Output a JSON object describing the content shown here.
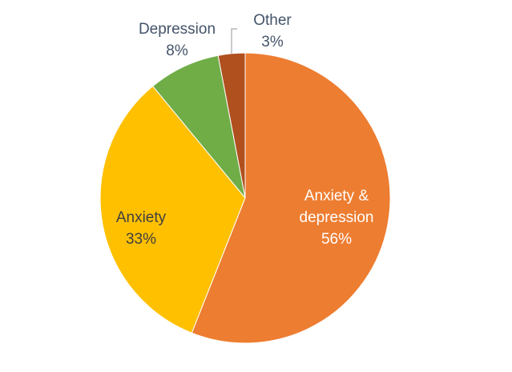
{
  "chart_data": {
    "type": "pie",
    "categories": [
      "Anxiety & depression",
      "Anxiety",
      "Depression",
      "Other"
    ],
    "values": [
      56,
      33,
      8,
      3
    ],
    "value_labels": [
      "56%",
      "33%",
      "8%",
      "3%"
    ],
    "colors": [
      "#ED7D31",
      "#FFC000",
      "#70AD47",
      "#B0501F"
    ]
  }
}
